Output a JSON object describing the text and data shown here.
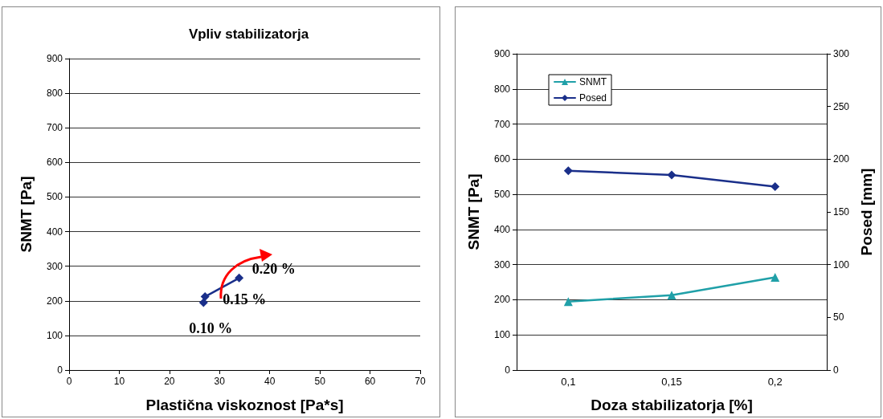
{
  "chart_data": [
    {
      "type": "line",
      "title": "Vpliv stabilizatorja",
      "xlabel": "Plastična viskoznost [Pa*s]",
      "ylabel": "SNMT [Pa]",
      "x": [
        26.8,
        27.1,
        33.9
      ],
      "series": [
        {
          "color": "#1a2f8a",
          "values": [
            195,
            212,
            266
          ]
        }
      ],
      "xlim": [
        0,
        70
      ],
      "xticks": [
        0,
        10,
        20,
        30,
        40,
        50,
        60,
        70
      ],
      "ylim": [
        0,
        900
      ],
      "yticks": [
        0,
        100,
        200,
        300,
        400,
        500,
        600,
        700,
        800,
        900
      ],
      "grid": "y",
      "marker": "diamond",
      "line_style": "solid",
      "legend": false,
      "annotations": [
        {
          "text": "0.10 %",
          "x": 26.8,
          "y": 195
        },
        {
          "text": "0.15 %",
          "x": 27.1,
          "y": 212
        },
        {
          "text": "0.20 %",
          "x": 33.9,
          "y": 266
        }
      ]
    },
    {
      "type": "line",
      "xlabel": "Doza stabilizatorja [%]",
      "ylabel": "SNMT [Pa]",
      "y2label": "Posed [mm]",
      "categories": [
        "0,1",
        "0,15",
        "0,2"
      ],
      "series": [
        {
          "name": "SNMT",
          "color": "#20a0a8",
          "values": [
            195,
            213,
            264
          ],
          "marker": "triangle"
        },
        {
          "name": "Posed",
          "color": "#1a2f8a",
          "values": [
            189,
            185,
            174
          ],
          "axis": "y2",
          "marker": "diamond"
        }
      ],
      "ylim": [
        0,
        900
      ],
      "yticks": [
        0,
        100,
        200,
        300,
        400,
        500,
        600,
        700,
        800,
        900
      ],
      "y2lim": [
        0,
        300
      ],
      "y2ticks": [
        0,
        50,
        100,
        150,
        200,
        250,
        300
      ],
      "grid": "y",
      "legend": "top left",
      "line_style": "solid"
    }
  ]
}
